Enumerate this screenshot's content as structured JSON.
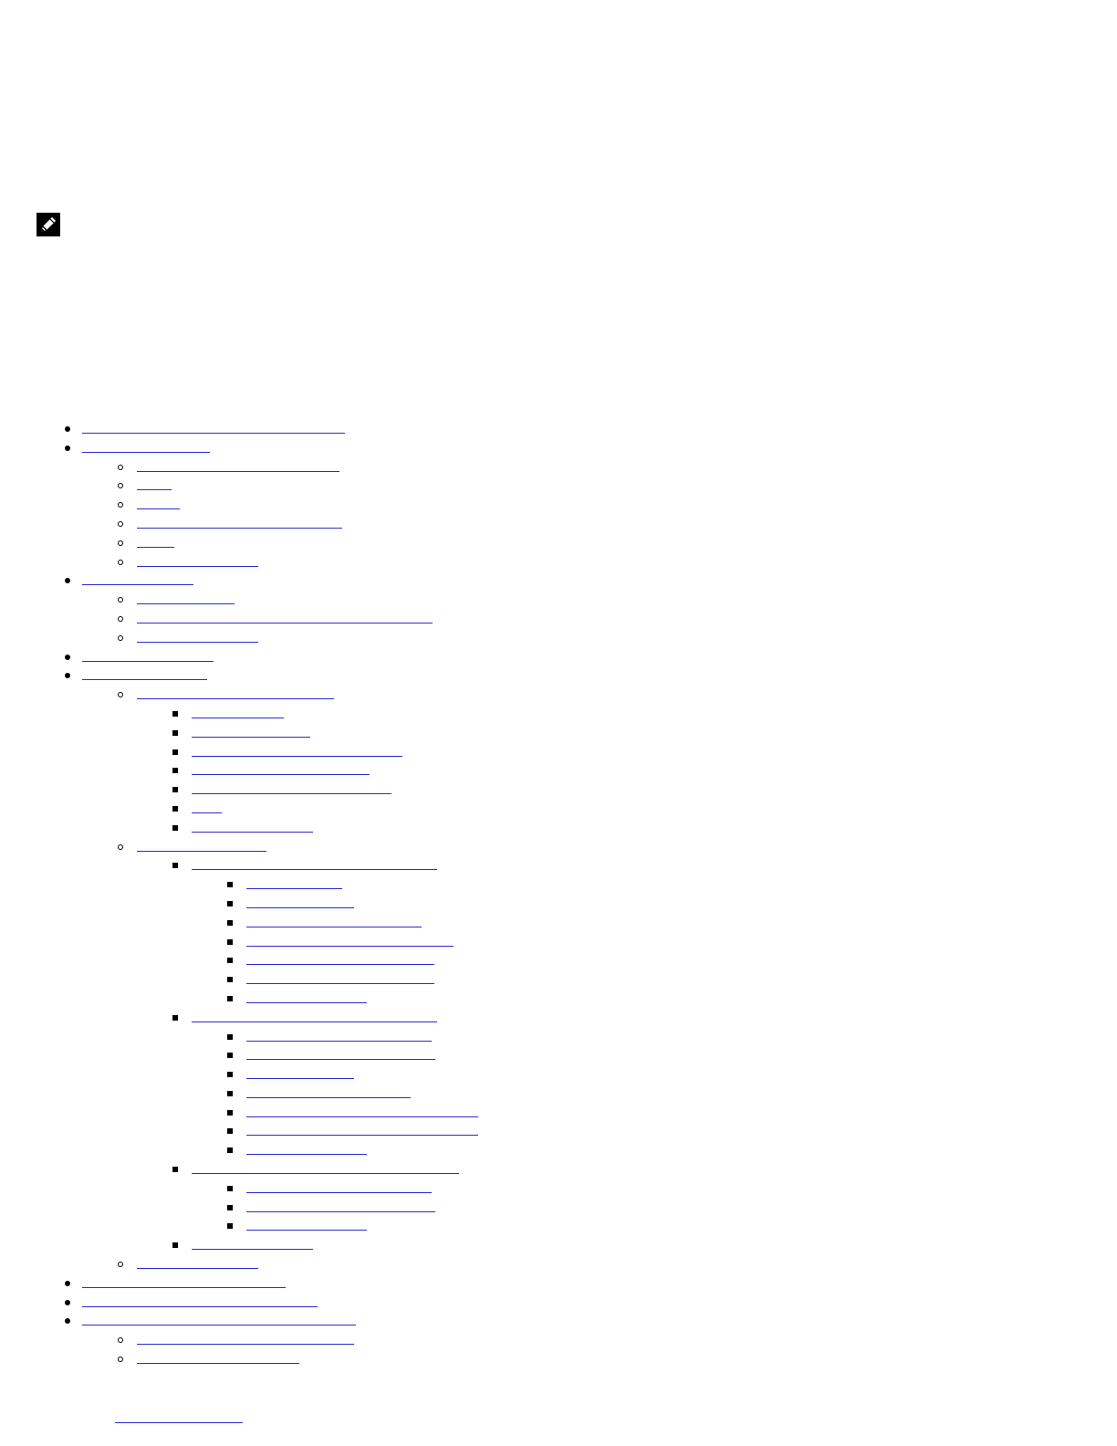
{
  "note": {
    "icon": "note-pencil-icon"
  },
  "colors": {
    "link": "#2b2bd0",
    "text": "#000000",
    "background": "#ffffff"
  },
  "toc_items": [
    {
      "level": 1
    },
    {
      "level": 1
    },
    {
      "level": 2
    },
    {
      "level": 2
    },
    {
      "level": 2
    },
    {
      "level": 2
    },
    {
      "level": 2
    },
    {
      "level": 2
    },
    {
      "level": 1
    },
    {
      "level": 2
    },
    {
      "level": 2
    },
    {
      "level": 2
    },
    {
      "level": 1
    },
    {
      "level": 1
    },
    {
      "level": 2
    },
    {
      "level": 3
    },
    {
      "level": 3
    },
    {
      "level": 3
    },
    {
      "level": 3
    },
    {
      "level": 3
    },
    {
      "level": 3
    },
    {
      "level": 3
    },
    {
      "level": 2
    },
    {
      "level": 3
    },
    {
      "level": 4
    },
    {
      "level": 4
    },
    {
      "level": 4
    },
    {
      "level": 4
    },
    {
      "level": 4
    },
    {
      "level": 4
    },
    {
      "level": 4
    },
    {
      "level": 3
    },
    {
      "level": 4
    },
    {
      "level": 4
    },
    {
      "level": 4
    },
    {
      "level": 4
    },
    {
      "level": 4
    },
    {
      "level": 4
    },
    {
      "level": 4
    },
    {
      "level": 3
    },
    {
      "level": 4
    },
    {
      "level": 4
    },
    {
      "level": 4
    },
    {
      "level": 3
    },
    {
      "level": 2
    },
    {
      "level": 1
    },
    {
      "level": 1
    },
    {
      "level": 1
    },
    {
      "level": 2
    },
    {
      "level": 2
    }
  ]
}
